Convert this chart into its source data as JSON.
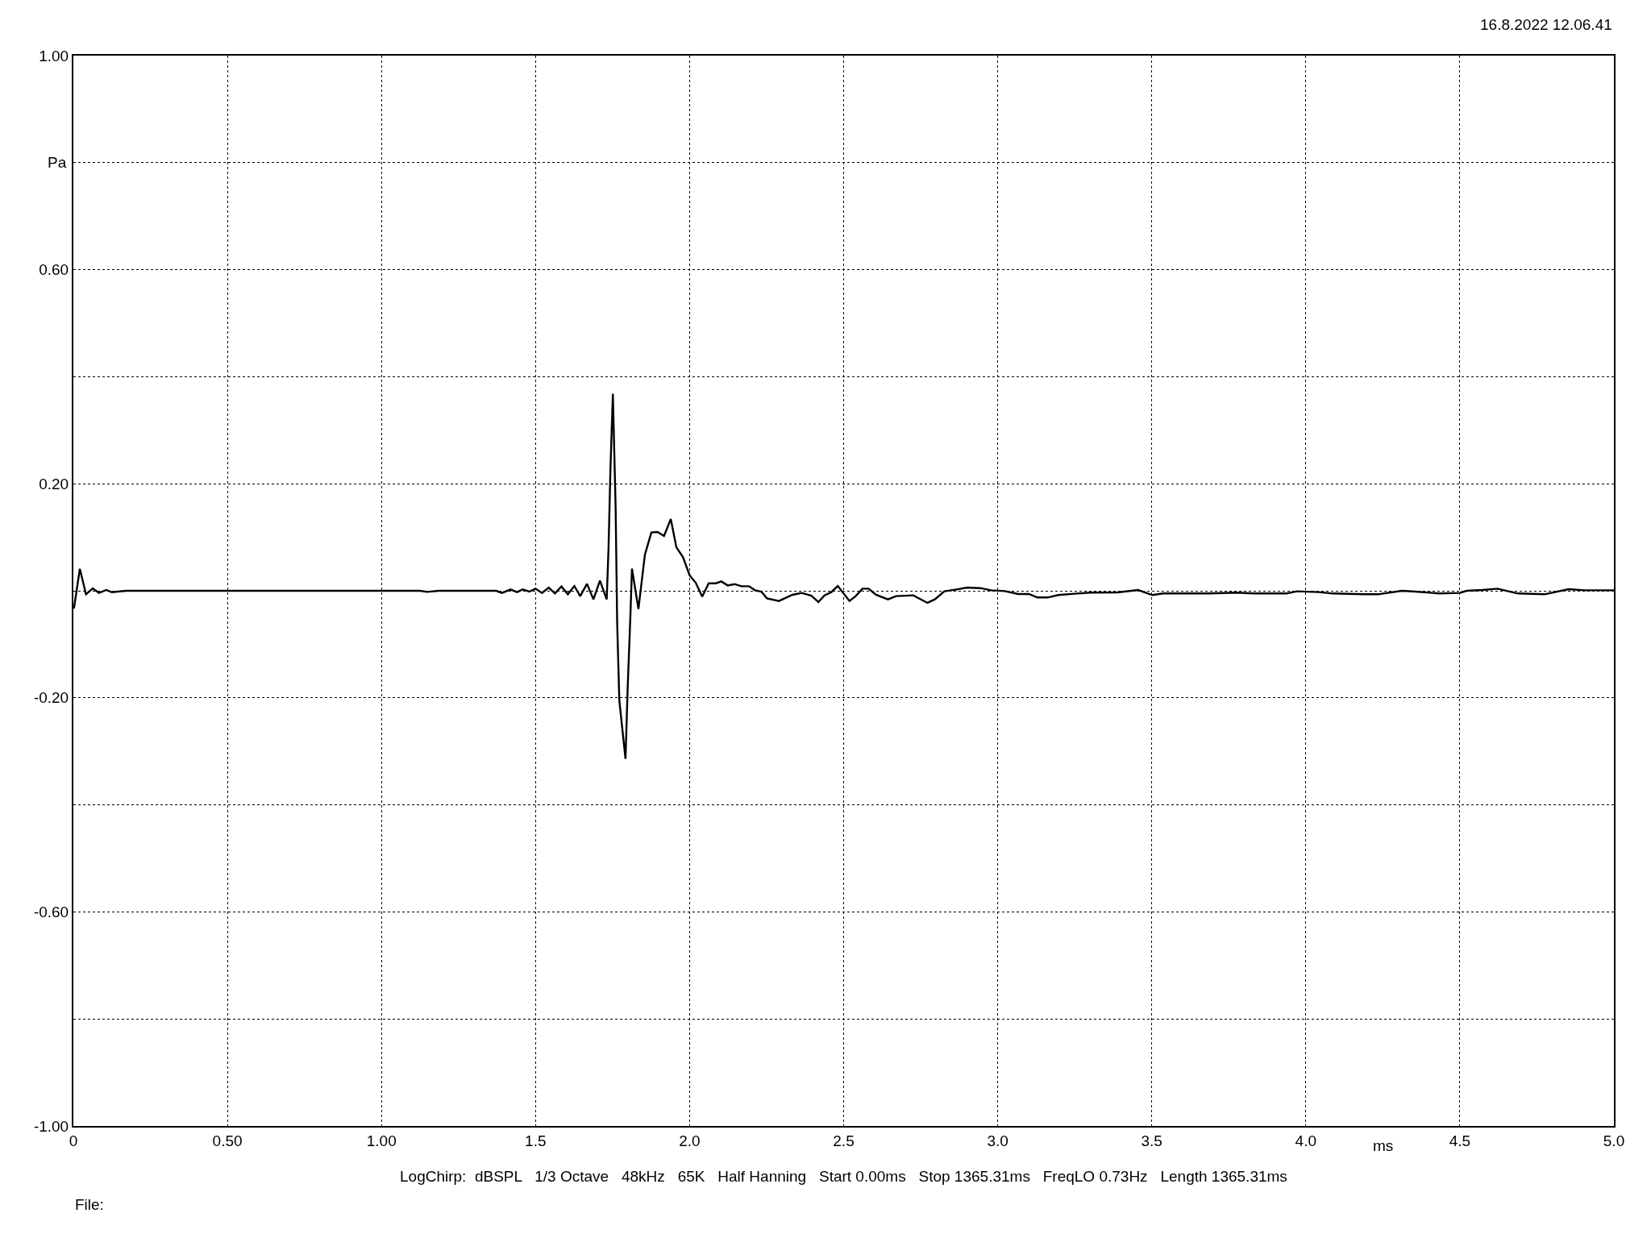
{
  "chart_data": {
    "type": "line",
    "xlabel": "ms",
    "ylabel": "Pa",
    "annotations": [
      "16.8.2022 12.06.41",
      "LogChirp:  dBSPL   1/3 Octave   48kHz   65K   Half Hanning   Start 0.00ms   Stop 1365.31ms   FreqLO 0.73Hz   Length 1365.31ms",
      "File:"
    ],
    "series": [
      {
        "color": "#000000",
        "x": [
          0,
          0.002,
          0.021,
          0.041,
          0.063,
          0.083,
          0.107,
          0.125,
          0.171,
          0.298,
          1.125,
          1.148,
          1.186,
          1.372,
          1.391,
          1.419,
          1.44,
          1.458,
          1.48,
          1.5,
          1.521,
          1.543,
          1.563,
          1.584,
          1.605,
          1.626,
          1.645,
          1.667,
          1.688,
          1.709,
          1.731,
          1.737,
          1.743,
          1.751,
          1.76,
          1.765,
          1.772,
          1.792,
          1.799,
          1.808,
          1.813,
          1.834,
          1.855,
          1.876,
          1.896,
          1.917,
          1.939,
          1.957,
          1.979,
          2.0,
          2.02,
          2.041,
          2.062,
          2.085,
          2.103,
          2.124,
          2.146,
          2.168,
          2.193,
          2.212,
          2.233,
          2.251,
          2.29,
          2.334,
          2.364,
          2.395,
          2.418,
          2.438,
          2.46,
          2.481,
          2.519,
          2.539,
          2.561,
          2.581,
          2.605,
          2.644,
          2.67,
          2.726,
          2.772,
          2.796,
          2.827,
          2.866,
          2.901,
          2.944,
          2.978,
          3.023,
          3.066,
          3.101,
          3.129,
          3.162,
          3.197,
          3.249,
          3.301,
          3.389,
          3.456,
          3.502,
          3.537,
          3.641,
          3.685,
          3.771,
          3.832,
          3.937,
          3.972,
          4.042,
          4.086,
          4.19,
          4.234,
          4.312,
          4.356,
          4.435,
          4.5,
          4.522,
          4.574,
          4.622,
          4.688,
          4.775,
          4.853,
          4.906,
          4.993,
          5.0
        ],
        "values": [
          -0.03,
          -0.033,
          0.041,
          -0.0065,
          0.0043,
          -0.004,
          0.0016,
          -0.0027,
          0,
          0,
          0,
          -0.002,
          0,
          0,
          -0.004,
          0.0025,
          -0.0025,
          0.0025,
          -0.0015,
          0.004,
          -0.004,
          0.006,
          -0.005,
          0.008,
          -0.0065,
          0.009,
          -0.01,
          0.013,
          -0.016,
          0.019,
          -0.016,
          0.08,
          0.225,
          0.368,
          0.155,
          -0.06,
          -0.205,
          -0.314,
          -0.183,
          -0.045,
          0.0415,
          -0.034,
          0.0675,
          0.109,
          0.11,
          0.1025,
          0.134,
          0.0815,
          0.0625,
          0.029,
          0.015,
          -0.011,
          0.014,
          0.014,
          0.0175,
          0.01,
          0.0125,
          0.0085,
          0.0085,
          0.001,
          -0.0015,
          -0.014,
          -0.019,
          -0.0075,
          -0.004,
          -0.009,
          -0.021,
          -0.0085,
          -0.0025,
          0.009,
          -0.019,
          -0.01,
          0.004,
          0.004,
          -0.0075,
          -0.016,
          -0.01,
          -0.0085,
          -0.0225,
          -0.016,
          -0.001,
          0.0025,
          0.006,
          0.005,
          0.001,
          -0.0005,
          -0.006,
          -0.006,
          -0.0125,
          -0.0125,
          -0.008,
          -0.0055,
          -0.0035,
          -0.003,
          0.0015,
          -0.008,
          -0.005,
          -0.005,
          -0.005,
          -0.0035,
          -0.005,
          -0.005,
          -0.001,
          -0.0025,
          -0.005,
          -0.0065,
          -0.0065,
          0,
          -0.0015,
          -0.005,
          -0.004,
          0,
          0.0015,
          0.004,
          -0.005,
          -0.0065,
          0.003,
          0.001,
          0.001,
          0.001
        ]
      }
    ],
    "xlim": [
      0,
      5
    ],
    "xticks": [
      {
        "value": 0,
        "label": "0"
      },
      {
        "value": 0.5,
        "label": "0.50"
      },
      {
        "value": 1,
        "label": "1.00"
      },
      {
        "value": 1.5,
        "label": "1.5"
      },
      {
        "value": 2,
        "label": "2.0"
      },
      {
        "value": 2.5,
        "label": "2.5"
      },
      {
        "value": 3,
        "label": "3.0"
      },
      {
        "value": 3.5,
        "label": "3.5"
      },
      {
        "value": 4,
        "label": "4.0"
      },
      {
        "value": 4.5,
        "label": "4.5"
      },
      {
        "value": 5,
        "label": "5.0"
      }
    ],
    "ylim": [
      -1,
      1
    ],
    "yticks": [
      {
        "value": -1,
        "label": "-1.00"
      },
      {
        "value": -0.8,
        "label": null
      },
      {
        "value": -0.6,
        "label": "-0.60"
      },
      {
        "value": -0.4,
        "label": null
      },
      {
        "value": -0.2,
        "label": "-0.20"
      },
      {
        "value": 0,
        "label": null
      },
      {
        "value": 0.2,
        "label": "0.20"
      },
      {
        "value": 0.4,
        "label": null
      },
      {
        "value": 0.6,
        "label": "0.60"
      },
      {
        "value": 0.8,
        "label": null
      },
      {
        "value": 1,
        "label": "1.00"
      }
    ],
    "grid": true,
    "line_style": "solid",
    "marker": "none"
  }
}
